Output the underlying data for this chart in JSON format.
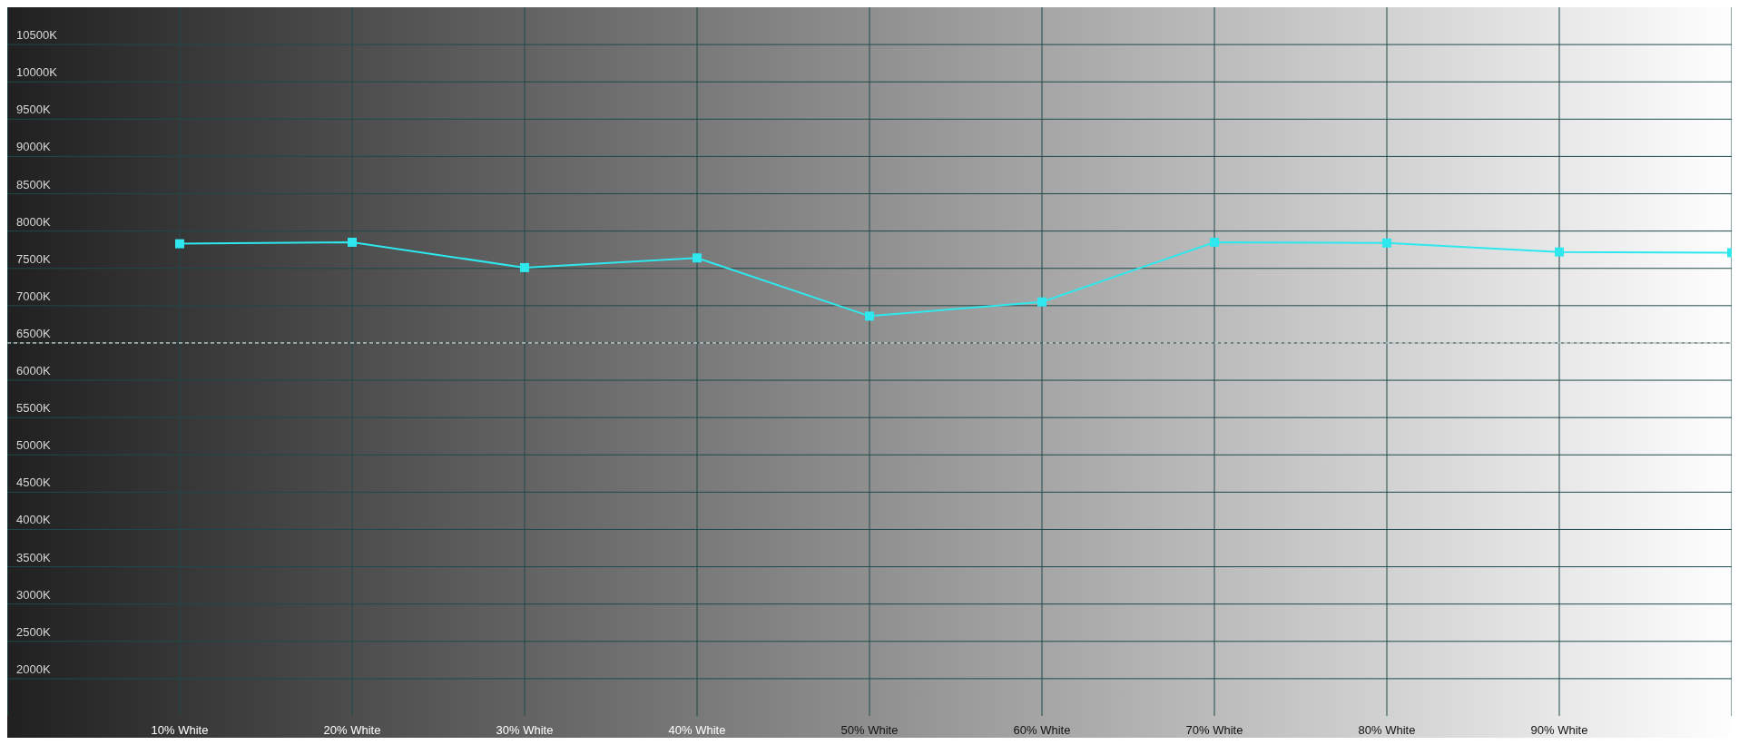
{
  "chart_data": {
    "type": "line",
    "categories": [
      null,
      "10% White",
      "20% White",
      "30% White",
      "40% White",
      "50% White",
      "60% White",
      "70% White",
      "80% White",
      "90% White",
      null
    ],
    "series": [
      {
        "color": "#2ee8ee",
        "values": [
          null,
          7830,
          7850,
          7510,
          7640,
          6860,
          7050,
          7850,
          7840,
          7720,
          7710
        ]
      }
    ],
    "ylim": [
      1500,
      11000
    ],
    "yticks": [
      {
        "value": 2000,
        "label": "2000K"
      },
      {
        "value": 2500,
        "label": "2500K"
      },
      {
        "value": 3000,
        "label": "3000K"
      },
      {
        "value": 3500,
        "label": "3500K"
      },
      {
        "value": 4000,
        "label": "4000K"
      },
      {
        "value": 4500,
        "label": "4500K"
      },
      {
        "value": 5000,
        "label": "5000K"
      },
      {
        "value": 5500,
        "label": "5500K"
      },
      {
        "value": 6000,
        "label": "6000K"
      },
      {
        "value": 6500,
        "label": "6500K"
      },
      {
        "value": 7000,
        "label": "7000K"
      },
      {
        "value": 7500,
        "label": "7500K"
      },
      {
        "value": 8000,
        "label": "8000K"
      },
      {
        "value": 8500,
        "label": "8500K"
      },
      {
        "value": 9000,
        "label": "9000K"
      },
      {
        "value": 9500,
        "label": "9500K"
      },
      {
        "value": 10000,
        "label": "10000K"
      },
      {
        "value": 10500,
        "label": "10500K"
      }
    ],
    "grid": true,
    "marker": "square",
    "line_style": "solid",
    "legend": false,
    "ref_lines": [
      {
        "axis": "y",
        "value": 6500,
        "color": "#ffffff",
        "line_style": "dashed"
      }
    ]
  }
}
